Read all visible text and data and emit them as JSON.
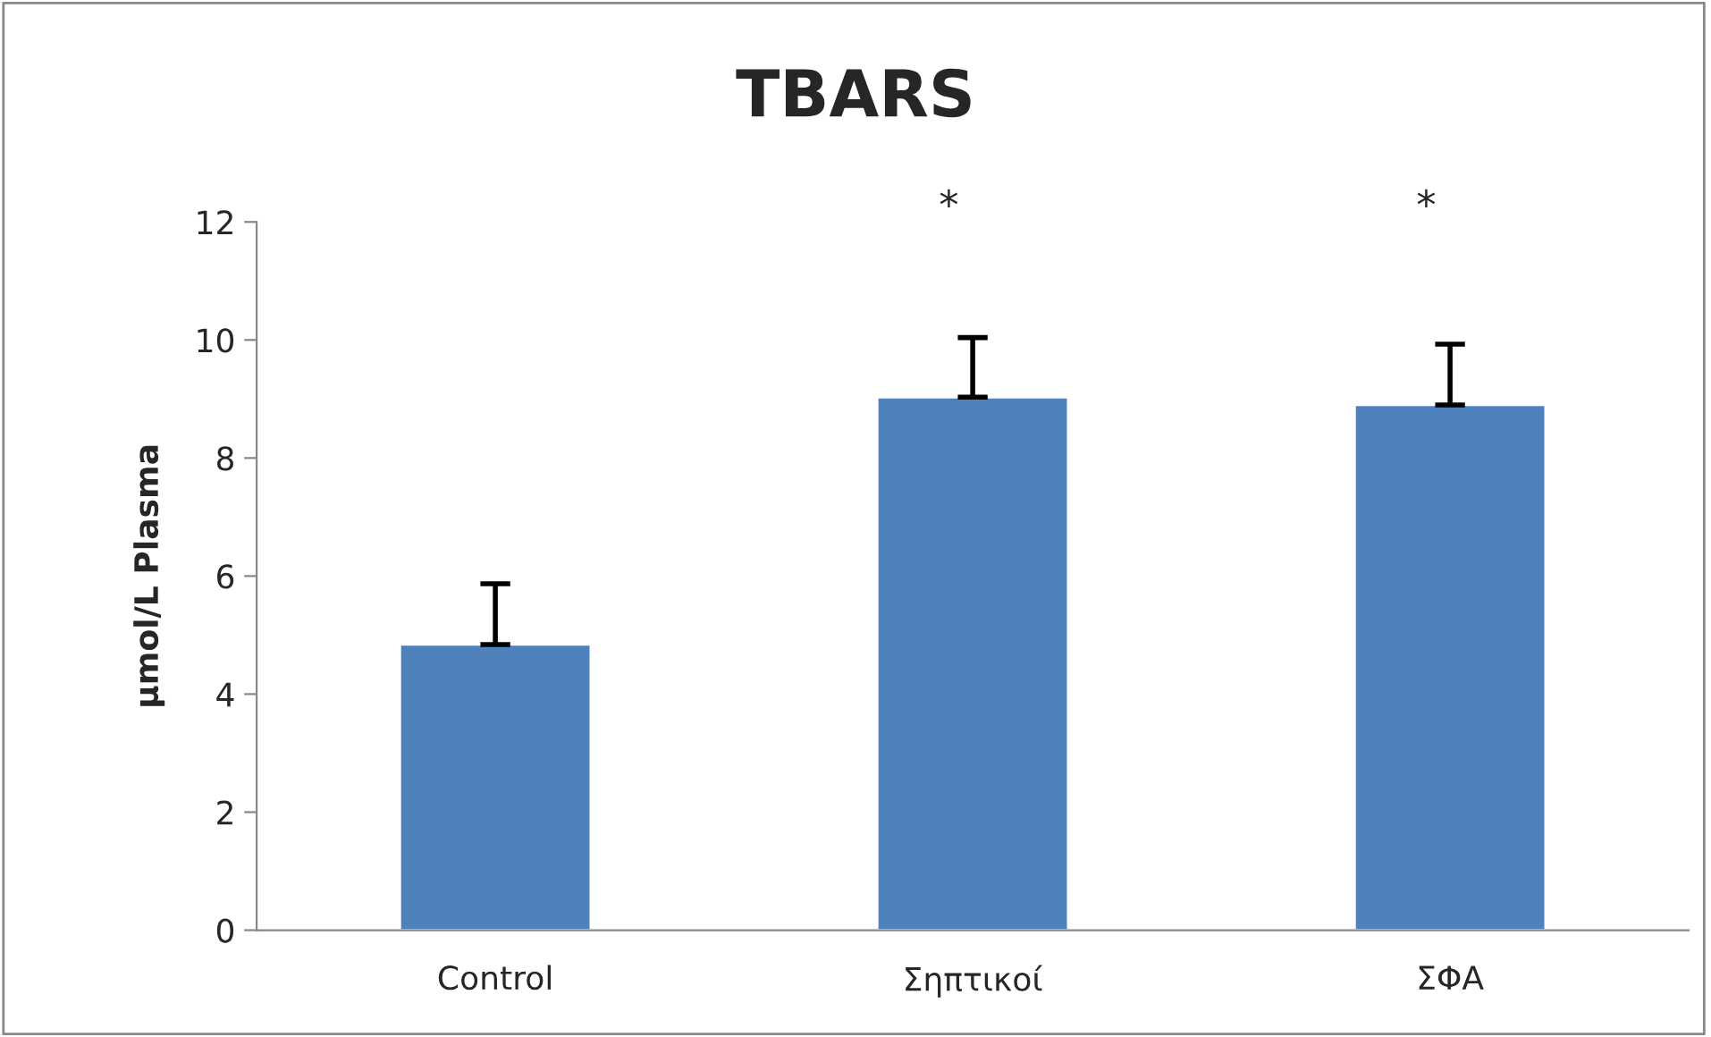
{
  "chart_data": {
    "type": "bar",
    "title": "TBARS",
    "ylabel": "μmol/L Plasma",
    "categories": [
      "Control",
      "Σηπτικοί",
      "ΣΦΑ"
    ],
    "values": [
      4.84,
      9.03,
      8.9
    ],
    "errors": [
      [
        4.84,
        5.87
      ],
      [
        9.03,
        10.04
      ],
      [
        8.9,
        9.93
      ]
    ],
    "color": "#4f81bd",
    "ylim": [
      0,
      12
    ],
    "yticks": [
      0,
      2,
      4,
      6,
      8,
      10,
      12
    ],
    "grid": false,
    "legend": false,
    "annotations": [
      "*",
      "*"
    ]
  }
}
